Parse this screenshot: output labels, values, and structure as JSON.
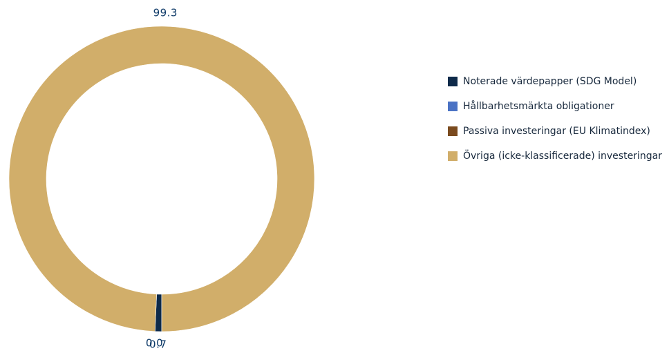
{
  "chart_data": {
    "type": "pie",
    "donut": true,
    "title": "",
    "series": [
      {
        "name": "Noterade värdepapper (SDG Model)",
        "value": 0.7,
        "color": "#0e2a4a"
      },
      {
        "name": "Hållbarhetsmärkta obligationer",
        "value": 0.0,
        "color": "#4a72c4"
      },
      {
        "name": "Passiva investeringar (EU Klimatindex)",
        "value": 0.0,
        "color": "#7a4a1e"
      },
      {
        "name": "Övriga (icke-klassificerade) investeringar",
        "value": 99.3,
        "color": "#d1ae6a"
      }
    ],
    "data_labels": [
      {
        "series": 3,
        "text": "99.3"
      },
      {
        "series": 0,
        "text": "0.7"
      },
      {
        "series": 1,
        "text": "0.0"
      }
    ],
    "legend_position": "right"
  }
}
